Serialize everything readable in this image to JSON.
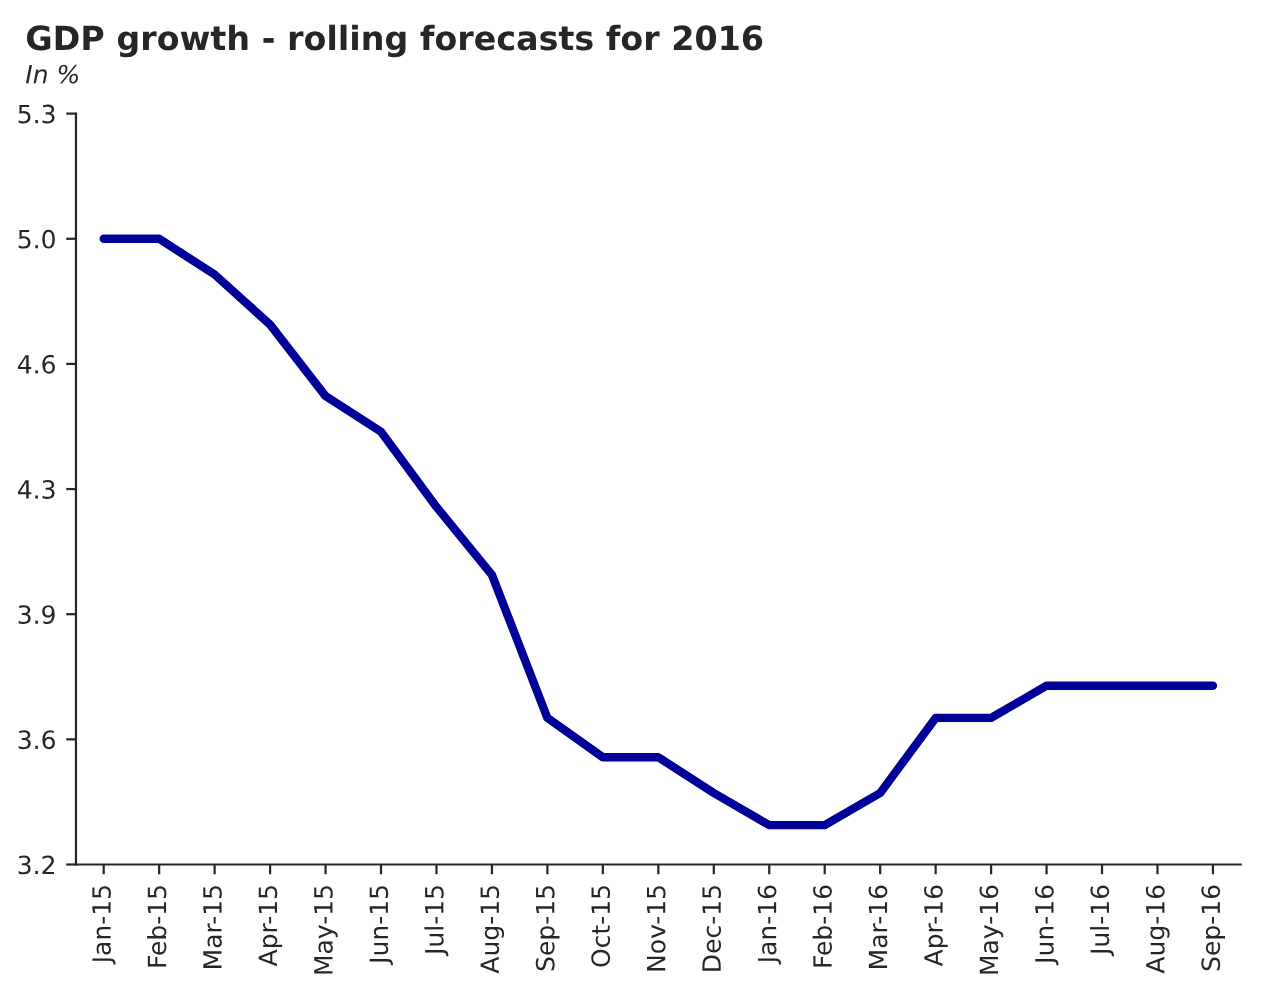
{
  "chart_data": {
    "type": "line",
    "title": "GDP growth - rolling forecasts for 2016",
    "subtitle": "In %",
    "categories": [
      "Jan-15",
      "Feb-15",
      "Mar-15",
      "Apr-15",
      "May-15",
      "Jun-15",
      "Jul-15",
      "Aug-15",
      "Sep-15",
      "Oct-15",
      "Nov-15",
      "Dec-15",
      "Jan-16",
      "Feb-16",
      "Mar-16",
      "Apr-16",
      "May-16",
      "Jun-16",
      "Jul-16",
      "Aug-16",
      "Sep-16"
    ],
    "series": [
      {
        "color": "#000099",
        "values": [
          4.95,
          4.95,
          4.85,
          4.71,
          4.51,
          4.41,
          4.2,
          4.01,
          3.61,
          3.5,
          3.5,
          3.4,
          3.31,
          3.31,
          3.4,
          3.61,
          3.61,
          3.7,
          3.7,
          3.7,
          3.7
        ]
      }
    ],
    "ylim": [
      3.2,
      5.3
    ],
    "yticks": [
      3.2,
      {
        "value": 3.55,
        "label": "3.6"
      },
      3.9,
      {
        "value": 4.25,
        "label": "4.3"
      },
      4.6,
      {
        "value": 4.95,
        "label": "5.0"
      },
      5.3
    ],
    "grid": false,
    "legend": false,
    "marker": "none",
    "line_style": "solid"
  }
}
